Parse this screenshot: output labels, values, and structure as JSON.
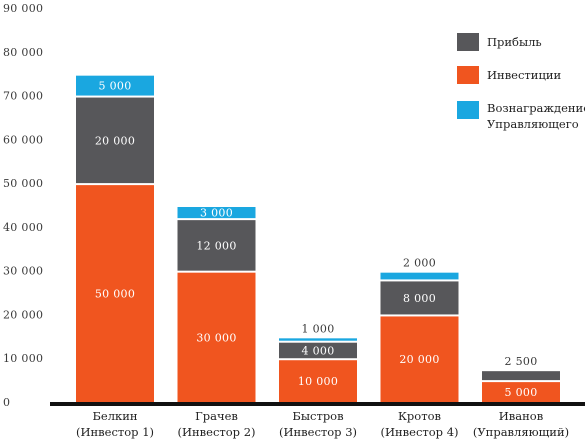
{
  "chart_data": {
    "type": "bar",
    "stacked": true,
    "categories": [
      [
        "Белкин",
        "(Инвестор 1)"
      ],
      [
        "Грачев",
        "(Инвестор 2)"
      ],
      [
        "Быстров",
        "(Инвестор 3)"
      ],
      [
        "Кротов",
        "(Инвестор 4)"
      ],
      [
        "Иванов",
        "(Управляющий)"
      ]
    ],
    "series": [
      {
        "name": "Инвестиции",
        "color": "#f0551f",
        "label_color": "#ffffff",
        "values": [
          50000,
          30000,
          10000,
          20000,
          5000
        ],
        "labels": [
          "50 000",
          "30 000",
          "10 000",
          "20 000",
          "5 000"
        ]
      },
      {
        "name": "Прибыль",
        "color": "#57575a",
        "label_color": "#ffffff",
        "values": [
          20000,
          12000,
          4000,
          8000,
          2500
        ],
        "labels": [
          "20 000",
          "12 000",
          "4 000",
          "8 000",
          "2 500"
        ]
      },
      {
        "name": "Вознаграждение Управляющего",
        "color": "#1aa7e0",
        "label_color": "#ffffff",
        "values": [
          5000,
          3000,
          1000,
          2000,
          0
        ],
        "labels": [
          "5 000",
          "3 000",
          "1 000",
          "2 000",
          ""
        ]
      }
    ],
    "ylim": [
      0,
      90000
    ],
    "yticks": [
      0,
      10000,
      20000,
      30000,
      40000,
      50000,
      60000,
      70000,
      80000,
      90000
    ],
    "ytick_labels": [
      "0",
      "10 000",
      "20 000",
      "30 000",
      "40 000",
      "50 000",
      "60 000",
      "70 000",
      "80 000",
      "90 000"
    ],
    "grid": false,
    "legend": {
      "position": "top-right",
      "order": [
        "Прибыль",
        "Инвестиции",
        "Вознаграждение Управляющего"
      ],
      "labels": [
        [
          "Прибыль"
        ],
        [
          "Инвестиции"
        ],
        [
          "Вознаграждение",
          "Управляющего"
        ]
      ]
    },
    "title": "",
    "xlabel": "",
    "ylabel": ""
  }
}
